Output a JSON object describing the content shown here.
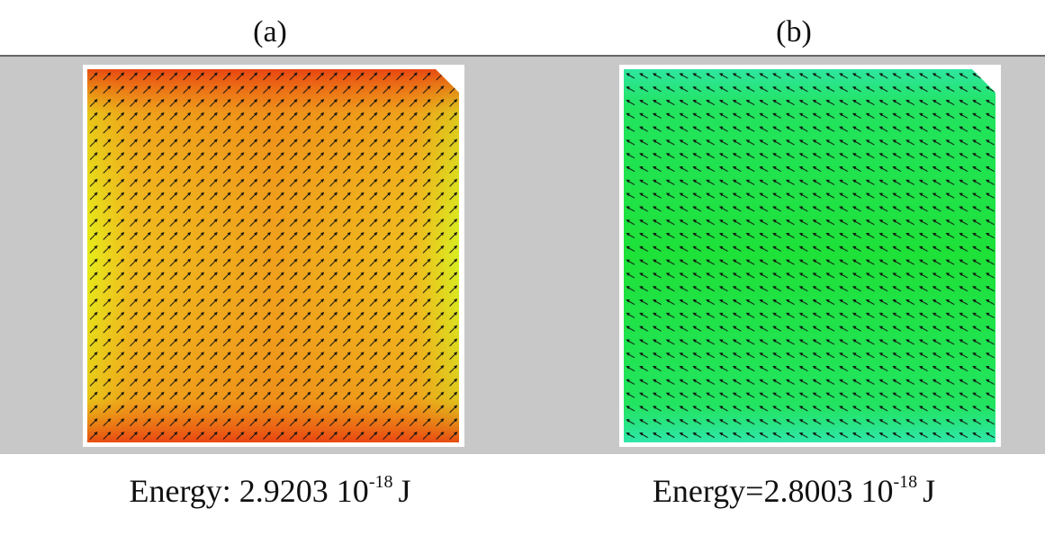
{
  "panels": [
    {
      "label": "(a)",
      "caption": {
        "text": "Energy: 2.9203 10",
        "exponent": "-18",
        "unit": "J"
      }
    },
    {
      "label": "(b)",
      "caption": {
        "text": "Energy=2.8003 10",
        "exponent": "-18",
        "unit": "J"
      }
    }
  ]
}
